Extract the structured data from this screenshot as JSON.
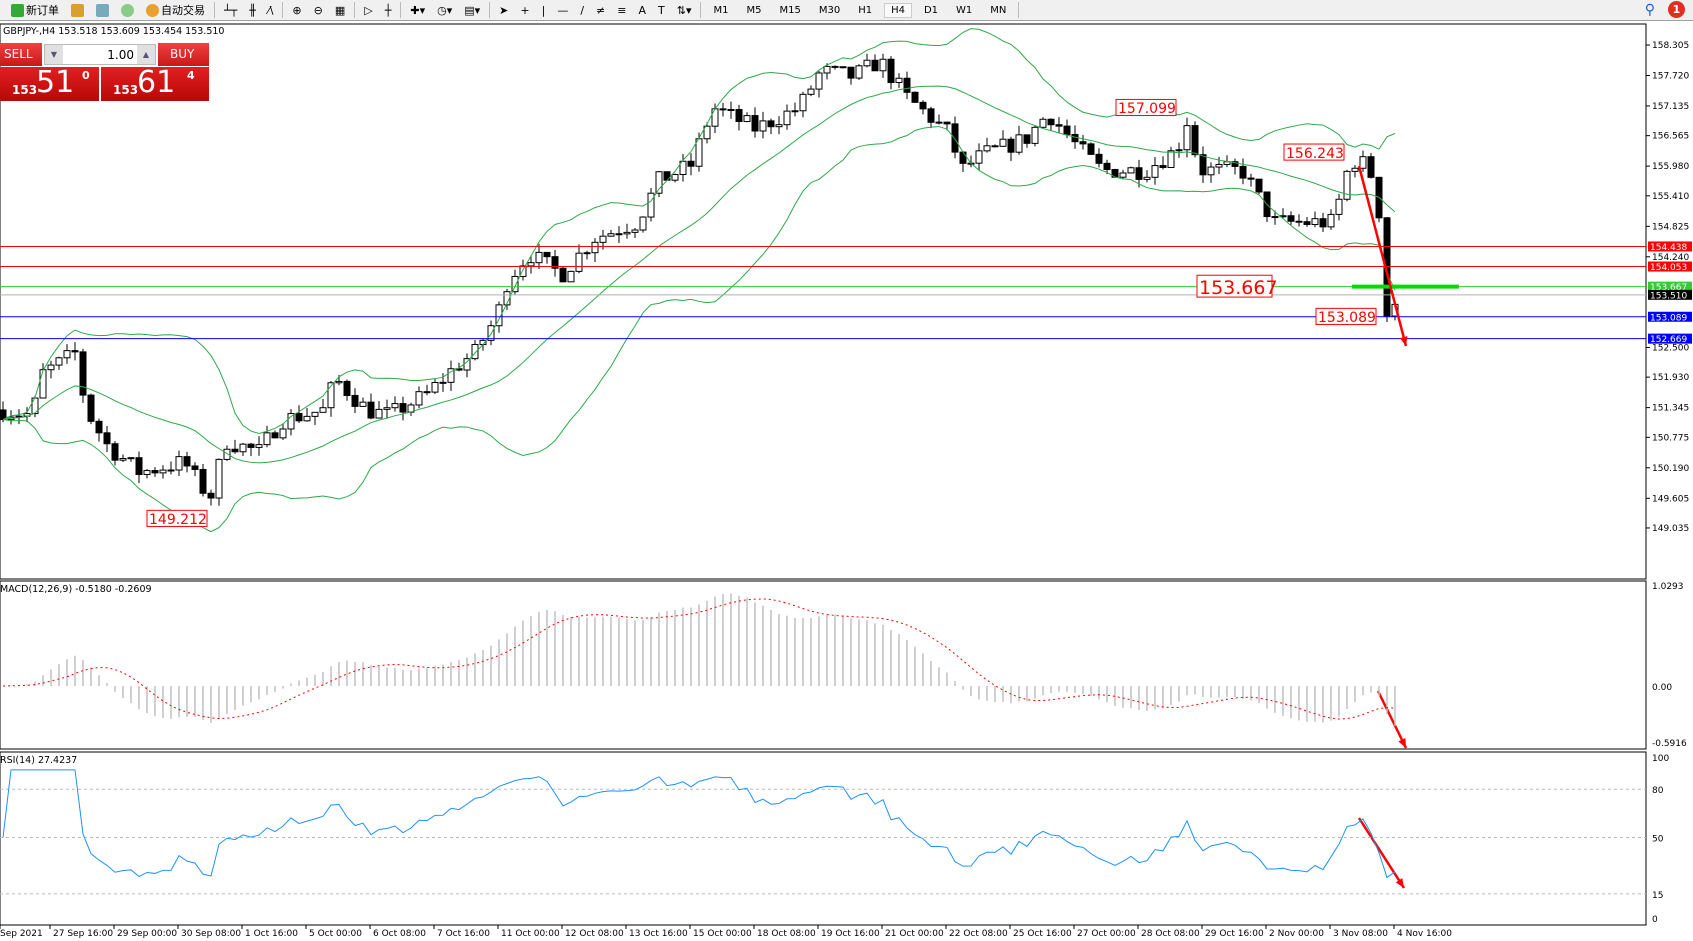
{
  "toolbar": {
    "new_order": "新订单",
    "auto_trading": "自动交易",
    "timeframes": [
      "M1",
      "M5",
      "M15",
      "M30",
      "H1",
      "H4",
      "D1",
      "W1",
      "MN"
    ],
    "active_timeframe": "H4",
    "notifications": "1"
  },
  "symbol_info": "GBPJPY-,H4  153.518 153.609 153.454 153.510",
  "trade_panel": {
    "sell_label": "SELL",
    "buy_label": "BUY",
    "lot": "1.00",
    "sell_small": "153",
    "sell_big": "51",
    "sell_pip": "0",
    "buy_small": "153",
    "buy_big": "61",
    "buy_pip": "4"
  },
  "price_axis": [
    "158.305",
    "157.720",
    "157.135",
    "156.565",
    "155.980",
    "155.410",
    "154.825",
    "154.240",
    "152.500",
    "151.930",
    "151.345",
    "150.775",
    "150.190",
    "149.605",
    "149.035"
  ],
  "levels": [
    {
      "price": 154.438,
      "label": "154.438",
      "color": "#ff0000"
    },
    {
      "price": 154.053,
      "label": "154.053",
      "color": "#ff0000"
    },
    {
      "price": 153.667,
      "label": "153.667",
      "color": "#33cc33"
    },
    {
      "price": 153.51,
      "label": "153.510",
      "color": "#000000"
    },
    {
      "price": 153.089,
      "label": "153.089",
      "color": "#0000ff"
    },
    {
      "price": 152.669,
      "label": "152.669",
      "color": "#0000ff"
    }
  ],
  "annotations": [
    {
      "text": "157.099",
      "price": 157.099
    },
    {
      "text": "156.243",
      "price": 156.243
    },
    {
      "text": "153.667",
      "price": 153.667,
      "large": true
    },
    {
      "text": "153.089",
      "price": 153.089
    },
    {
      "text": "149.212",
      "price": 149.212
    }
  ],
  "price_path": [
    [
      0,
      151.3
    ],
    [
      32,
      151.2
    ],
    [
      43,
      152.0
    ],
    [
      76,
      152.4
    ],
    [
      86,
      151.3
    ],
    [
      108,
      150.6
    ],
    [
      140,
      150.1
    ],
    [
      184,
      150.3
    ],
    [
      210,
      149.6
    ],
    [
      226,
      150.7
    ],
    [
      259,
      150.5
    ],
    [
      281,
      151.1
    ],
    [
      324,
      151.3
    ],
    [
      335,
      151.9
    ],
    [
      367,
      151.3
    ],
    [
      389,
      151.2
    ],
    [
      427,
      151.6
    ],
    [
      454,
      152.1
    ],
    [
      475,
      152.4
    ],
    [
      497,
      153.1
    ],
    [
      508,
      153.8
    ],
    [
      529,
      154.3
    ],
    [
      562,
      153.9
    ],
    [
      594,
      154.6
    ],
    [
      637,
      154.9
    ],
    [
      659,
      155.7
    ],
    [
      691,
      156.0
    ],
    [
      713,
      157.1
    ],
    [
      756,
      156.7
    ],
    [
      799,
      157.1
    ],
    [
      821,
      157.8
    ],
    [
      853,
      157.7
    ],
    [
      880,
      158.0
    ],
    [
      907,
      157.3
    ],
    [
      950,
      156.6
    ],
    [
      961,
      155.9
    ],
    [
      983,
      156.2
    ],
    [
      1026,
      156.5
    ],
    [
      1048,
      157.0
    ],
    [
      1080,
      156.3
    ],
    [
      1102,
      155.9
    ],
    [
      1145,
      155.9
    ],
    [
      1177,
      156.3
    ],
    [
      1188,
      156.9
    ],
    [
      1199,
      155.9
    ],
    [
      1242,
      155.9
    ],
    [
      1274,
      154.9
    ],
    [
      1307,
      154.9
    ],
    [
      1334,
      154.9
    ],
    [
      1345,
      155.8
    ],
    [
      1356,
      156.1
    ],
    [
      1366,
      156.0
    ],
    [
      1377,
      155.6
    ],
    [
      1388,
      152.9
    ],
    [
      1398,
      153.51
    ]
  ],
  "macd": {
    "label": "MACD(12,26,9) -0.5180 -0.2609",
    "axis": [
      "1.0293",
      "0.00",
      "-0.5916"
    ],
    "max": 1.0293,
    "min": -0.5916
  },
  "rsi": {
    "label": "RSI(14) 27.4237",
    "axis": [
      "100",
      "80",
      "50",
      "15",
      "0"
    ],
    "levels": [
      80,
      50,
      15
    ]
  },
  "time_axis": [
    "Sep 2021",
    "27 Sep 16:00",
    "29 Sep 00:00",
    "30 Sep 08:00",
    "1 Oct 16:00",
    "5 Oct 00:00",
    "6 Oct 08:00",
    "7 Oct 16:00",
    "11 Oct 00:00",
    "12 Oct 08:00",
    "13 Oct 16:00",
    "15 Oct 00:00",
    "18 Oct 08:00",
    "19 Oct 16:00",
    "21 Oct 00:00",
    "22 Oct 08:00",
    "25 Oct 16:00",
    "27 Oct 00:00",
    "28 Oct 08:00",
    "29 Oct 16:00",
    "2 Nov 00:00",
    "3 Nov 08:00",
    "4 Nov 16:00"
  ],
  "colors": {
    "bands": "#2ea84a",
    "macd_hist": "#c0c0c0",
    "macd_signal": "#ff0000",
    "rsi": "#1e90ff",
    "arrow": "#ff0000"
  }
}
